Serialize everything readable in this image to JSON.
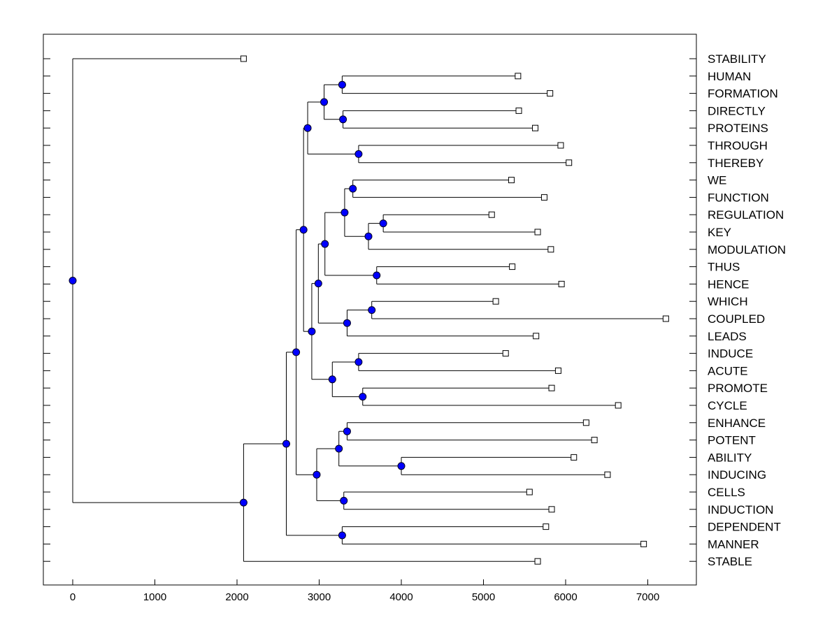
{
  "chart_data": {
    "type": "dendrogram",
    "title": "",
    "xlabel": "",
    "ylabel": "",
    "xlim": [
      -350,
      7600
    ],
    "x_ticks": [
      0,
      1000,
      2000,
      3000,
      4000,
      5000,
      6000,
      7000
    ],
    "x_tick_labels": [
      "0",
      "1000",
      "2000",
      "3000",
      "4000",
      "5000",
      "6000",
      "7000"
    ],
    "colors": {
      "node_fill": "#0000ff",
      "leaf_fill": "#ffffff",
      "line": "#000000"
    },
    "leaves": [
      {
        "name": "STABILITY",
        "x": 2080
      },
      {
        "name": "HUMAN",
        "x": 5420
      },
      {
        "name": "FORMATION",
        "x": 5810
      },
      {
        "name": "DIRECTLY",
        "x": 5430
      },
      {
        "name": "PROTEINS",
        "x": 5630
      },
      {
        "name": "THROUGH",
        "x": 5940
      },
      {
        "name": "THEREBY",
        "x": 6040
      },
      {
        "name": "WE",
        "x": 5340
      },
      {
        "name": "FUNCTION",
        "x": 5740
      },
      {
        "name": "REGULATION",
        "x": 5100
      },
      {
        "name": "KEY",
        "x": 5660
      },
      {
        "name": "MODULATION",
        "x": 5820
      },
      {
        "name": "THUS",
        "x": 5350
      },
      {
        "name": "HENCE",
        "x": 5950
      },
      {
        "name": "WHICH",
        "x": 5150
      },
      {
        "name": "COUPLED",
        "x": 7220
      },
      {
        "name": "LEADS",
        "x": 5640
      },
      {
        "name": "INDUCE",
        "x": 5270
      },
      {
        "name": "ACUTE",
        "x": 5910
      },
      {
        "name": "PROMOTE",
        "x": 5830
      },
      {
        "name": "CYCLE",
        "x": 6640
      },
      {
        "name": "ENHANCE",
        "x": 6250
      },
      {
        "name": "POTENT",
        "x": 6350
      },
      {
        "name": "ABILITY",
        "x": 6100
      },
      {
        "name": "INDUCING",
        "x": 6510
      },
      {
        "name": "CELLS",
        "x": 5560
      },
      {
        "name": "INDUCTION",
        "x": 5830
      },
      {
        "name": "DEPENDENT",
        "x": 5760
      },
      {
        "name": "MANNER",
        "x": 6950
      },
      {
        "name": "STABLE",
        "x": 5660
      }
    ],
    "merges": [
      {
        "id": "n1",
        "x": 3280,
        "children": [
          "HUMAN",
          "FORMATION"
        ]
      },
      {
        "id": "n2",
        "x": 3290,
        "children": [
          "DIRECTLY",
          "PROTEINS"
        ]
      },
      {
        "id": "n3",
        "x": 3060,
        "children": [
          "n1",
          "n2"
        ]
      },
      {
        "id": "n4",
        "x": 3480,
        "children": [
          "THROUGH",
          "THEREBY"
        ]
      },
      {
        "id": "n5",
        "x": 2860,
        "children": [
          "n3",
          "n4"
        ]
      },
      {
        "id": "n6",
        "x": 3410,
        "children": [
          "WE",
          "FUNCTION"
        ]
      },
      {
        "id": "n7",
        "x": 3780,
        "children": [
          "REGULATION",
          "KEY"
        ]
      },
      {
        "id": "n8",
        "x": 3600,
        "children": [
          "n7",
          "MODULATION"
        ]
      },
      {
        "id": "n9",
        "x": 3310,
        "children": [
          "n6",
          "n8"
        ]
      },
      {
        "id": "n10",
        "x": 3700,
        "children": [
          "THUS",
          "HENCE"
        ]
      },
      {
        "id": "n11",
        "x": 3070,
        "children": [
          "n9",
          "n10"
        ]
      },
      {
        "id": "n12",
        "x": 3640,
        "children": [
          "WHICH",
          "COUPLED"
        ]
      },
      {
        "id": "n13",
        "x": 3340,
        "children": [
          "n12",
          "LEADS"
        ]
      },
      {
        "id": "n14",
        "x": 2990,
        "children": [
          "n11",
          "n13"
        ]
      },
      {
        "id": "n15",
        "x": 3480,
        "children": [
          "INDUCE",
          "ACUTE"
        ]
      },
      {
        "id": "n16",
        "x": 3530,
        "children": [
          "PROMOTE",
          "CYCLE"
        ]
      },
      {
        "id": "n17",
        "x": 3160,
        "children": [
          "n15",
          "n16"
        ]
      },
      {
        "id": "n18",
        "x": 2910,
        "children": [
          "n14",
          "n17"
        ]
      },
      {
        "id": "n19",
        "x": 2810,
        "children": [
          "n5",
          "n18"
        ]
      },
      {
        "id": "n20",
        "x": 3340,
        "children": [
          "ENHANCE",
          "POTENT"
        ]
      },
      {
        "id": "n21",
        "x": 4000,
        "children": [
          "ABILITY",
          "INDUCING"
        ]
      },
      {
        "id": "n22",
        "x": 3240,
        "children": [
          "n20",
          "n21"
        ]
      },
      {
        "id": "n23",
        "x": 3300,
        "children": [
          "CELLS",
          "INDUCTION"
        ]
      },
      {
        "id": "n24",
        "x": 2970,
        "children": [
          "n22",
          "n23"
        ]
      },
      {
        "id": "n25",
        "x": 2720,
        "children": [
          "n19",
          "n24"
        ]
      },
      {
        "id": "n26",
        "x": 3280,
        "children": [
          "DEPENDENT",
          "MANNER"
        ]
      },
      {
        "id": "n27",
        "x": 2600,
        "children": [
          "n25",
          "n26"
        ]
      },
      {
        "id": "n28",
        "x": 2080,
        "children": [
          "n27",
          "STABLE"
        ]
      },
      {
        "id": "n29",
        "x": 0,
        "children": [
          "STABILITY",
          "n28"
        ]
      }
    ]
  }
}
